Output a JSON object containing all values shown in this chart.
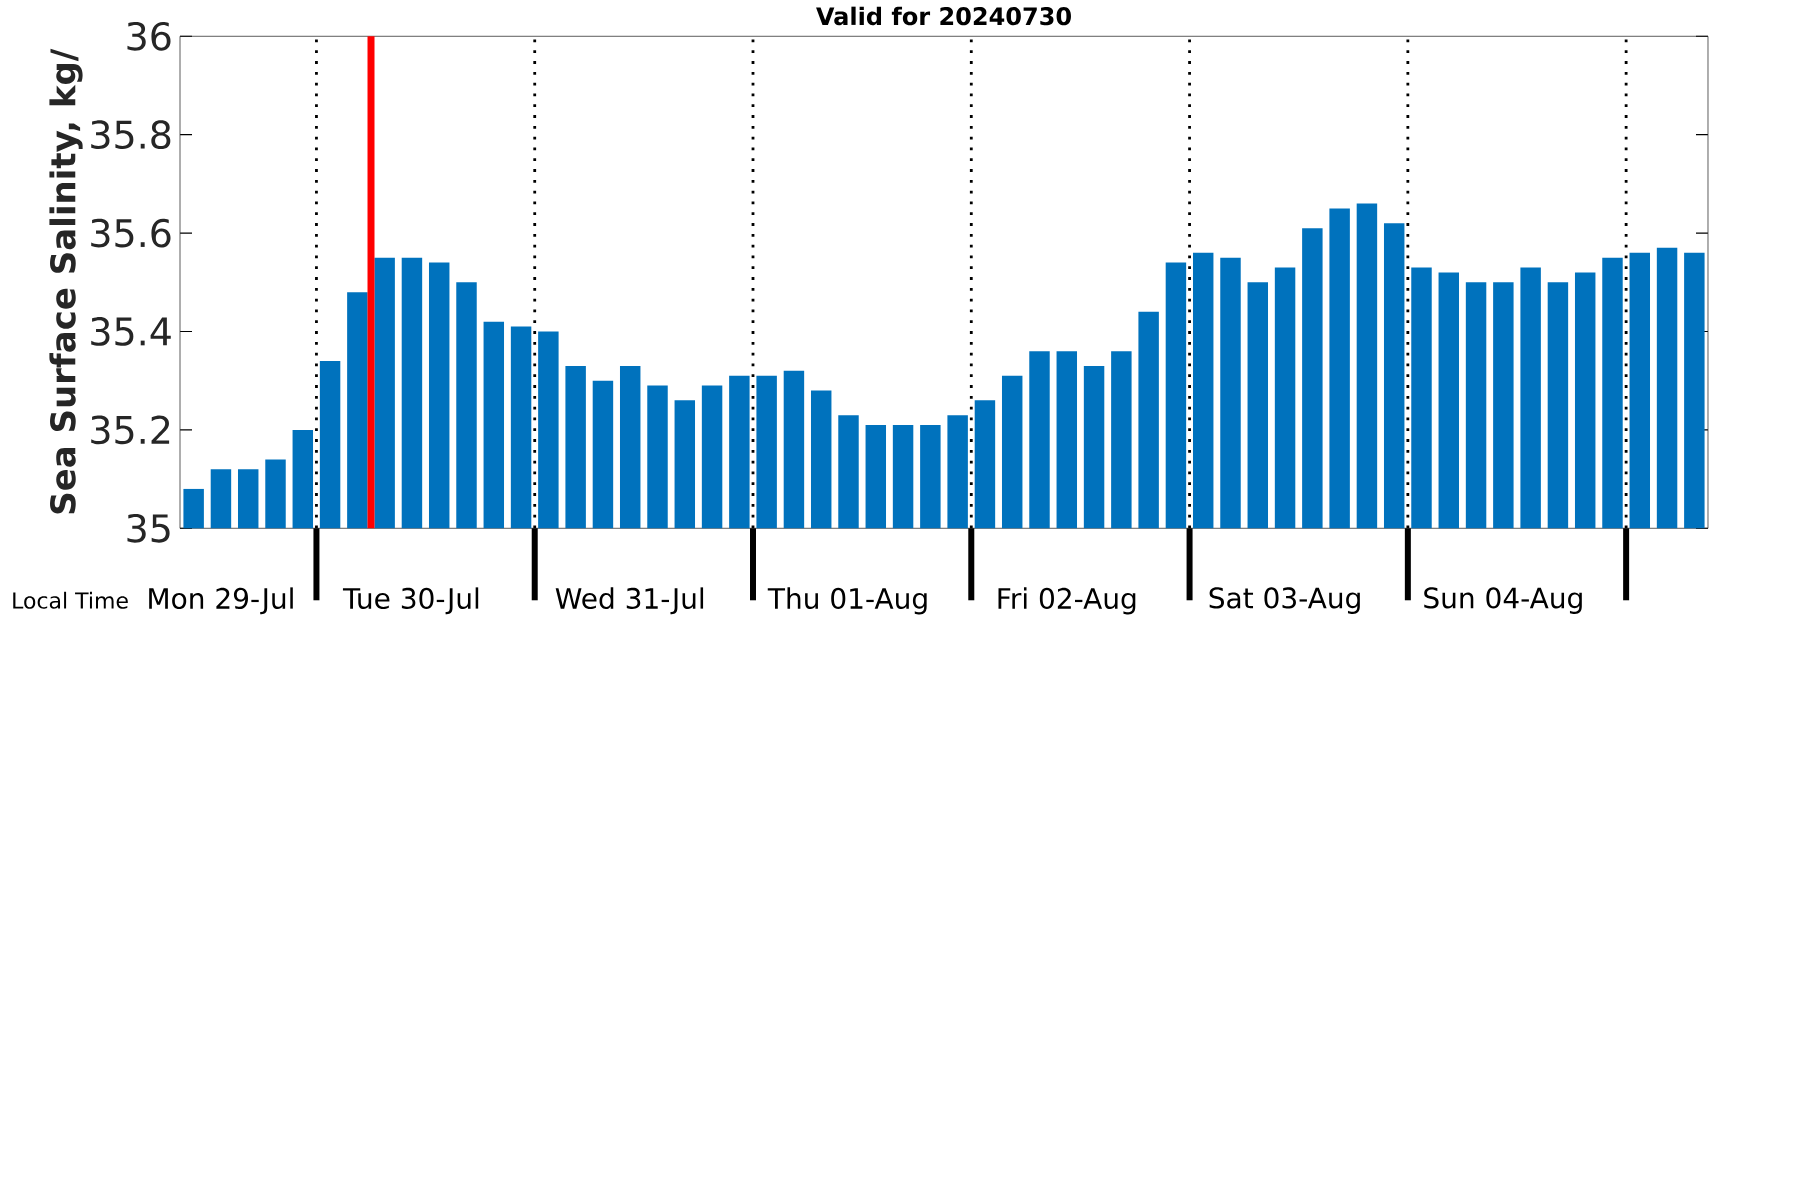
{
  "chart_data": {
    "type": "bar",
    "title": "Valid for 20240730",
    "xlabel": "Local Time",
    "ylabel": "Sea Surface Salinity, kg/",
    "categories": [
      null,
      "Mon 29-Jul",
      null,
      null,
      null,
      null,
      null,
      null,
      "Tue 30-Jul",
      null,
      null,
      null,
      null,
      null,
      null,
      null,
      "Wed 31-Jul",
      null,
      null,
      null,
      null,
      null,
      null,
      null,
      "Thu 01-Aug",
      null,
      null,
      null,
      null,
      null,
      null,
      null,
      "Fri 02-Aug",
      null,
      null,
      null,
      null,
      null,
      null,
      null,
      "Sat 03-Aug",
      null,
      null,
      null,
      null,
      null,
      null,
      null,
      "Sun 04-Aug",
      null,
      null,
      null,
      null,
      null,
      null,
      null
    ],
    "values": [
      35.08,
      35.12,
      35.12,
      35.14,
      35.2,
      35.34,
      35.48,
      35.55,
      35.55,
      35.54,
      35.5,
      35.42,
      35.41,
      35.4,
      35.33,
      35.3,
      35.33,
      35.29,
      35.26,
      35.29,
      35.31,
      35.31,
      35.32,
      35.28,
      35.23,
      35.21,
      35.21,
      35.21,
      35.23,
      35.26,
      35.31,
      35.36,
      35.36,
      35.33,
      35.36,
      35.44,
      35.54,
      35.56,
      35.55,
      35.5,
      35.53,
      35.61,
      35.65,
      35.66,
      35.62,
      35.53,
      35.52,
      35.5,
      35.5,
      35.53,
      35.5,
      35.52,
      35.55,
      35.56,
      35.57,
      35.56
    ],
    "color": "#0072bd",
    "ylim": [
      35,
      36
    ],
    "yticks": [
      35,
      35.2,
      35.4,
      35.6,
      35.8,
      36
    ],
    "grid": false
  }
}
